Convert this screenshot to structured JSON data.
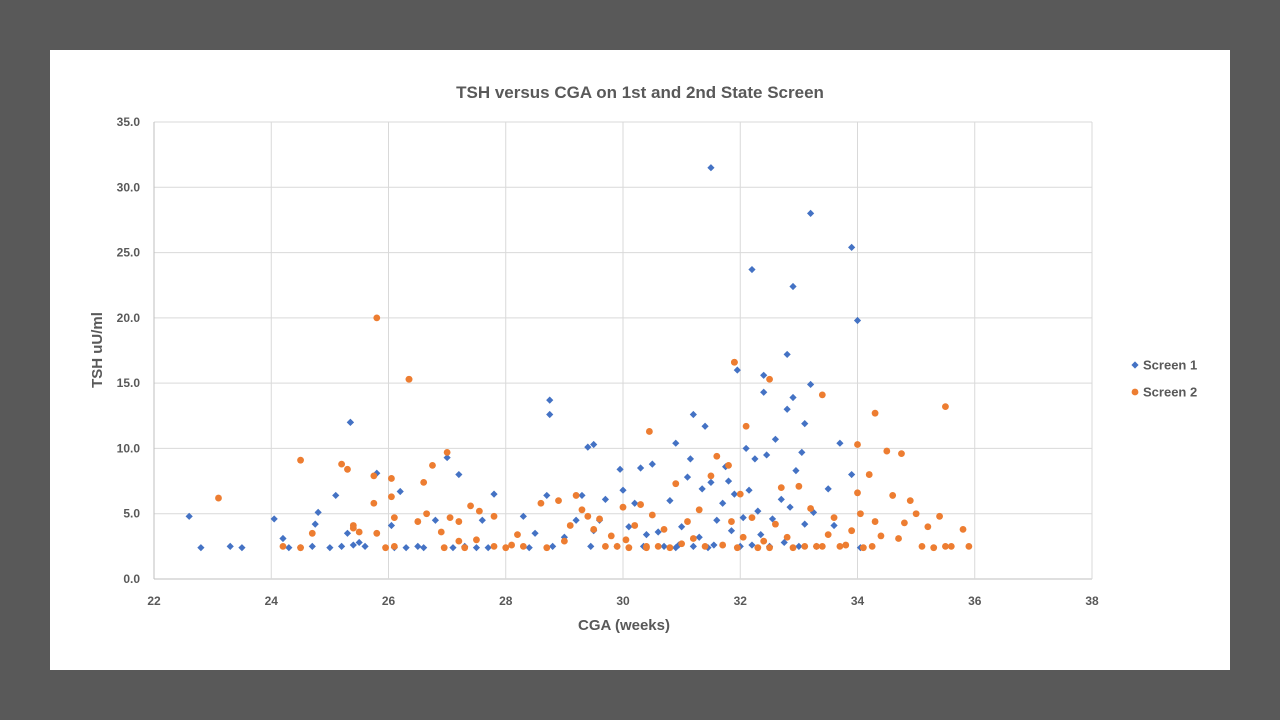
{
  "chart_data": {
    "type": "scatter",
    "title": "TSH versus CGA on 1st and 2nd State Screen",
    "xlabel": "CGA (weeks)",
    "ylabel": "TSH uU/ml",
    "xlim": [
      22,
      38
    ],
    "ylim": [
      0,
      35
    ],
    "xticks": [
      "22",
      "24",
      "26",
      "28",
      "30",
      "32",
      "34",
      "36",
      "38"
    ],
    "yticks": [
      "0.0",
      "5.0",
      "10.0",
      "15.0",
      "20.0",
      "25.0",
      "30.0",
      "35.0"
    ],
    "grid": true,
    "legend_position": "right",
    "colors": {
      "Screen 1": "#4472c4",
      "Screen 2": "#ed7d31"
    },
    "series": [
      {
        "name": "Screen 1",
        "marker": "diamond",
        "x": [
          22.6,
          22.8,
          23.3,
          23.5,
          24.05,
          24.2,
          24.3,
          24.5,
          24.7,
          24.75,
          24.8,
          25.0,
          25.1,
          25.2,
          25.3,
          25.35,
          25.4,
          25.5,
          25.6,
          25.8,
          26.05,
          26.1,
          26.2,
          26.3,
          26.5,
          26.6,
          26.8,
          27.0,
          27.1,
          27.2,
          27.3,
          27.5,
          27.6,
          27.7,
          27.8,
          28.3,
          28.4,
          28.5,
          28.7,
          28.75,
          28.8,
          29.0,
          29.2,
          29.3,
          29.4,
          29.45,
          29.5,
          29.6,
          29.7,
          29.9,
          29.95,
          30.0,
          30.1,
          30.2,
          30.3,
          30.35,
          30.4,
          30.5,
          30.6,
          30.7,
          30.8,
          30.9,
          30.95,
          31.0,
          31.1,
          31.15,
          31.2,
          31.3,
          31.35,
          31.4,
          31.45,
          31.5,
          31.55,
          31.6,
          31.7,
          31.75,
          31.8,
          31.85,
          31.9,
          31.95,
          32.0,
          32.05,
          32.1,
          32.15,
          32.2,
          32.25,
          32.3,
          32.35,
          32.4,
          32.45,
          32.5,
          32.55,
          32.6,
          32.7,
          32.75,
          32.8,
          32.85,
          32.9,
          32.95,
          33.0,
          33.05,
          33.1,
          33.2,
          33.25,
          33.3,
          33.5,
          33.6,
          33.7,
          33.9,
          34.0,
          32.2,
          31.5,
          33.2,
          32.9,
          32.8,
          33.9,
          34.05,
          28.75,
          25.35,
          31.2,
          32.4,
          33.1,
          30.9,
          29.5
        ],
        "y": [
          4.8,
          2.4,
          2.5,
          2.4,
          4.6,
          3.1,
          2.4,
          2.4,
          2.5,
          4.2,
          5.1,
          2.4,
          6.4,
          2.5,
          3.5,
          12.0,
          2.6,
          2.8,
          2.5,
          8.1,
          4.1,
          2.4,
          6.7,
          2.4,
          2.5,
          2.4,
          4.5,
          9.3,
          2.4,
          8.0,
          2.5,
          2.4,
          4.5,
          2.4,
          6.5,
          4.8,
          2.4,
          3.5,
          6.4,
          13.7,
          2.5,
          3.2,
          4.5,
          6.4,
          10.1,
          2.5,
          3.7,
          4.5,
          6.1,
          2.5,
          8.4,
          6.8,
          4.0,
          5.8,
          8.5,
          2.5,
          3.4,
          8.8,
          3.6,
          2.5,
          6.0,
          10.4,
          2.6,
          4.0,
          7.8,
          9.2,
          2.5,
          3.2,
          6.9,
          11.7,
          2.4,
          7.4,
          2.6,
          4.5,
          5.8,
          8.6,
          7.5,
          3.7,
          6.5,
          16.0,
          2.5,
          4.7,
          10.0,
          6.8,
          2.6,
          9.2,
          5.2,
          3.4,
          15.6,
          9.5,
          2.5,
          4.6,
          10.7,
          6.1,
          2.8,
          17.2,
          5.5,
          13.9,
          8.3,
          2.5,
          9.7,
          4.2,
          14.9,
          5.1,
          2.5,
          6.9,
          4.1,
          10.4,
          25.4,
          19.8,
          23.7,
          31.5,
          28.0,
          22.4,
          13.0,
          8.0,
          2.4,
          12.6,
          12.0,
          12.6,
          14.3,
          11.9,
          2.4,
          10.3
        ]
      },
      {
        "name": "Screen 2",
        "marker": "circle",
        "x": [
          23.1,
          24.2,
          24.5,
          24.5,
          24.7,
          25.2,
          25.3,
          25.4,
          25.4,
          25.5,
          25.75,
          25.8,
          25.8,
          25.95,
          26.05,
          26.05,
          26.1,
          26.1,
          26.35,
          26.5,
          26.6,
          26.65,
          26.75,
          26.9,
          26.95,
          27.0,
          27.05,
          27.2,
          27.2,
          27.3,
          27.4,
          27.5,
          27.55,
          27.8,
          27.8,
          28.0,
          28.1,
          28.2,
          28.3,
          28.6,
          28.7,
          28.9,
          29.0,
          29.1,
          29.2,
          29.3,
          29.4,
          29.5,
          29.6,
          29.7,
          29.8,
          29.9,
          30.0,
          30.05,
          30.1,
          30.2,
          30.3,
          30.4,
          30.45,
          30.5,
          30.6,
          30.7,
          30.8,
          30.9,
          31.0,
          31.1,
          31.2,
          31.3,
          31.4,
          31.5,
          31.6,
          31.7,
          31.8,
          31.85,
          31.9,
          31.95,
          32.0,
          32.05,
          32.1,
          32.2,
          32.3,
          32.4,
          32.5,
          32.6,
          32.7,
          32.8,
          32.9,
          33.0,
          33.1,
          33.2,
          33.3,
          33.4,
          33.5,
          33.6,
          33.7,
          33.8,
          33.9,
          34.0,
          34.05,
          34.1,
          34.2,
          34.25,
          34.3,
          34.4,
          34.5,
          34.6,
          34.7,
          34.75,
          34.8,
          34.9,
          35.0,
          35.1,
          35.2,
          35.3,
          35.4,
          35.5,
          35.6,
          35.8,
          35.9,
          25.75,
          26.35,
          31.9,
          32.5,
          34.0,
          33.4,
          34.3,
          30.4,
          35.5
        ],
        "y": [
          6.2,
          2.5,
          9.1,
          2.4,
          3.5,
          8.8,
          8.4,
          4.1,
          3.9,
          3.6,
          5.8,
          20.0,
          3.5,
          2.4,
          7.7,
          6.3,
          4.7,
          2.5,
          15.3,
          4.4,
          7.4,
          5.0,
          8.7,
          3.6,
          2.4,
          9.7,
          4.7,
          2.9,
          4.4,
          2.4,
          5.6,
          3.0,
          5.2,
          4.8,
          2.5,
          2.4,
          2.6,
          3.4,
          2.5,
          5.8,
          2.4,
          6.0,
          2.9,
          4.1,
          6.4,
          5.3,
          4.8,
          3.8,
          4.6,
          2.5,
          3.3,
          2.5,
          5.5,
          3.0,
          2.4,
          4.1,
          5.7,
          2.5,
          11.3,
          4.9,
          2.5,
          3.8,
          2.4,
          7.3,
          2.7,
          4.4,
          3.1,
          5.3,
          2.5,
          7.9,
          9.4,
          2.6,
          8.7,
          4.4,
          16.6,
          2.4,
          6.5,
          3.2,
          11.7,
          4.7,
          2.4,
          2.9,
          15.3,
          4.2,
          7.0,
          3.2,
          2.4,
          7.1,
          2.5,
          5.4,
          2.5,
          2.5,
          3.4,
          4.7,
          2.5,
          2.6,
          3.7,
          10.3,
          5.0,
          2.4,
          8.0,
          2.5,
          4.4,
          3.3,
          9.8,
          6.4,
          3.1,
          9.6,
          4.3,
          6.0,
          5.0,
          2.5,
          4.0,
          2.4,
          4.8,
          2.5,
          2.5,
          3.8,
          2.5,
          7.9,
          15.3,
          16.6,
          2.4,
          6.6,
          14.1,
          12.7,
          2.4,
          13.2
        ]
      }
    ]
  }
}
